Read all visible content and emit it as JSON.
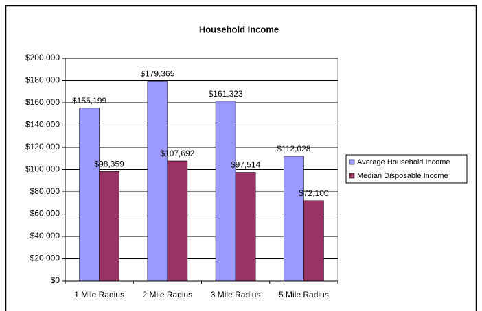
{
  "chart_data": {
    "type": "bar",
    "title": "Household Income",
    "categories": [
      "1 Mile Radius",
      "2 Mile Radius",
      "3 Mile Radius",
      "5 Mile Radius"
    ],
    "series": [
      {
        "name": "Average Household Income",
        "color": "#9999ff",
        "values": [
          155199,
          179365,
          161323,
          112028
        ],
        "value_labels": [
          "$155,199",
          "$179,365",
          "$161,323",
          "$112,028"
        ]
      },
      {
        "name": "Median Disposable Income",
        "color": "#993366",
        "values": [
          98359,
          107692,
          97514,
          72100
        ],
        "value_labels": [
          "$98,359",
          "$107,692",
          "$97,514",
          "$72,100"
        ]
      }
    ],
    "ylim": [
      0,
      200000
    ],
    "yticks": [
      {
        "value": 0,
        "label": "$0"
      },
      {
        "value": 20000,
        "label": "$20,000"
      },
      {
        "value": 40000,
        "label": "$40,000"
      },
      {
        "value": 60000,
        "label": "$60,000"
      },
      {
        "value": 80000,
        "label": "$80,000"
      },
      {
        "value": 100000,
        "label": "$100,000"
      },
      {
        "value": 120000,
        "label": "$120,000"
      },
      {
        "value": 140000,
        "label": "$140,000"
      },
      {
        "value": 160000,
        "label": "$160,000"
      },
      {
        "value": 180000,
        "label": "$180,000"
      },
      {
        "value": 200000,
        "label": "$200,000"
      }
    ],
    "grid": true,
    "legend": "right"
  }
}
